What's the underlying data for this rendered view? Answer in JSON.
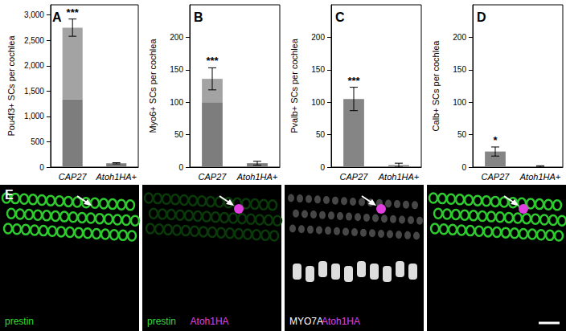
{
  "chart_data": [
    {
      "type": "bar",
      "title": "A",
      "y_label": "Pou4f3+ SCs per cochlea",
      "categories": [
        "CAP27",
        "Atoh1HA+"
      ],
      "series": [
        {
          "color": "#7d7d7d",
          "values": [
            1340,
            75
          ]
        },
        {
          "color": "#a3a3a3",
          "values": [
            1410,
            null
          ]
        }
      ],
      "stacked": true,
      "errors": [
        170,
        12
      ],
      "significance": [
        "***",
        null
      ],
      "ylim": [
        0,
        3200
      ],
      "yticks": [
        0,
        500,
        {
          "value": 1000,
          "label": "1,000"
        },
        {
          "value": 1500,
          "label": "1,500"
        },
        {
          "value": 2000,
          "label": "2,000"
        },
        {
          "value": 2500,
          "label": "2,500"
        },
        {
          "value": 3000,
          "label": "3,000"
        }
      ],
      "grid": false
    },
    {
      "type": "bar",
      "title": "B",
      "y_label": "Myo6+ SCs per cochlea",
      "categories": [
        "CAP27",
        "Atoh1HA+"
      ],
      "series": [
        {
          "color": "#7d7d7d",
          "values": [
            100,
            6
          ]
        },
        {
          "color": "#a3a3a3",
          "values": [
            36,
            null
          ]
        }
      ],
      "stacked": true,
      "errors": [
        17,
        3
      ],
      "significance": [
        "***",
        null
      ],
      "ylim": [
        0,
        250
      ],
      "yticks": [
        0,
        50,
        100,
        150,
        200
      ],
      "grid": false
    },
    {
      "type": "bar",
      "title": "C",
      "y_label": "Pvalb+ SCs per cochlea",
      "categories": [
        "CAP27",
        "Atoh1HA+"
      ],
      "series": [
        {
          "color": "#858585",
          "values": [
            105,
            3
          ]
        }
      ],
      "stacked": true,
      "errors": [
        18,
        3
      ],
      "significance": [
        "***",
        null
      ],
      "ylim": [
        0,
        250
      ],
      "yticks": [
        0,
        50,
        100,
        150,
        200
      ],
      "grid": false
    },
    {
      "type": "bar",
      "title": "D",
      "y_label": "Calb+ SCs per cochlea",
      "categories": [
        "CAP27",
        "Atoh1HA+"
      ],
      "series": [
        {
          "color": "#858585",
          "values": [
            24,
            1
          ]
        }
      ],
      "stacked": true,
      "errors": [
        7,
        1
      ],
      "significance": [
        "*",
        null
      ],
      "ylim": [
        0,
        250
      ],
      "yticks": [
        0,
        50,
        100,
        150,
        200
      ],
      "grid": false
    }
  ],
  "image_panel": {
    "label": "E",
    "tiles": [
      {
        "labels": [
          {
            "text": "prestin",
            "color": "#33dd33"
          }
        ]
      },
      {
        "labels": [
          {
            "text": "prestin",
            "color": "#33dd33"
          },
          {
            "text": "Atoh1HA",
            "color": "#e040e0"
          }
        ]
      },
      {
        "labels": [
          {
            "text": "MYO7A",
            "color": "#ffffff"
          },
          {
            "text": "Atoh1HA",
            "color": "#e040e0"
          }
        ]
      },
      {
        "labels": []
      }
    ]
  }
}
